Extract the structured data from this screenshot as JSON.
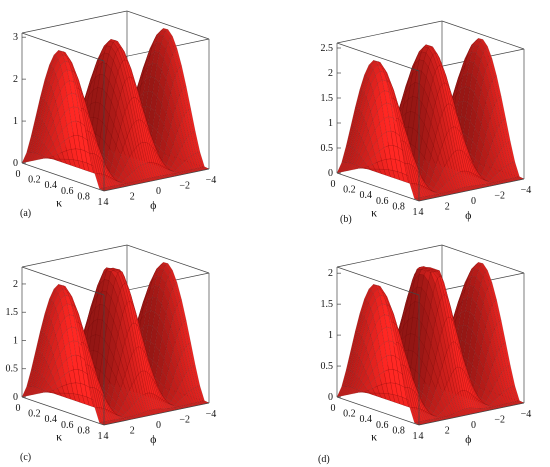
{
  "chart_data": [
    {
      "type": "surface3d",
      "label": "(a)",
      "xlabel": "κ",
      "ylabel": "ϕ",
      "x_ticks": [
        "0",
        "0.2",
        "0.4",
        "0.6",
        "0.8",
        "1"
      ],
      "y_ticks": [
        "4",
        "2",
        "0",
        "−2",
        "−4"
      ],
      "z_ticks": [
        "0",
        "1",
        "2",
        "3"
      ],
      "xlim": [
        0,
        1
      ],
      "ylim": [
        4,
        -4
      ],
      "zlim": [
        0,
        3.1
      ],
      "peak_value": 3.1,
      "dip_depth": 0.0
    },
    {
      "type": "surface3d",
      "label": "(b)",
      "xlabel": "κ",
      "ylabel": "ϕ",
      "x_ticks": [
        "0",
        "0.2",
        "0.4",
        "0.6",
        "0.8",
        "1"
      ],
      "y_ticks": [
        "4",
        "2",
        "0",
        "−2",
        "−4"
      ],
      "z_ticks": [
        "0",
        "0.5",
        "1",
        "1.5",
        "2",
        "2.5"
      ],
      "xlim": [
        0,
        1
      ],
      "ylim": [
        4,
        -4
      ],
      "zlim": [
        0,
        2.6
      ],
      "peak_value": 2.6,
      "dip_depth": 0.15
    },
    {
      "type": "surface3d",
      "label": "(c)",
      "xlabel": "κ",
      "ylabel": "ϕ",
      "x_ticks": [
        "0",
        "0.2",
        "0.4",
        "0.6",
        "0.8",
        "1"
      ],
      "y_ticks": [
        "4",
        "2",
        "0",
        "−2",
        "−4"
      ],
      "z_ticks": [
        "0",
        "0.5",
        "1",
        "1.5",
        "2"
      ],
      "xlim": [
        0,
        1
      ],
      "ylim": [
        4,
        -4
      ],
      "zlim": [
        0,
        2.3
      ],
      "peak_value": 2.3,
      "dip_depth": 0.35
    },
    {
      "type": "surface3d",
      "label": "(d)",
      "xlabel": "κ",
      "ylabel": "ϕ",
      "x_ticks": [
        "0",
        "0.2",
        "0.4",
        "0.6",
        "0.8",
        "1"
      ],
      "y_ticks": [
        "4",
        "2",
        "0",
        "−2",
        "−4"
      ],
      "z_ticks": [
        "0",
        "0.5",
        "1",
        "1.5",
        "2"
      ],
      "xlim": [
        0,
        1
      ],
      "ylim": [
        4,
        -4
      ],
      "zlim": [
        0,
        2.1
      ],
      "peak_value": 2.1,
      "dip_depth": 0.6
    }
  ],
  "colors": {
    "surface": "#e8231f",
    "mesh": "#5a0808",
    "box": "#444444"
  }
}
